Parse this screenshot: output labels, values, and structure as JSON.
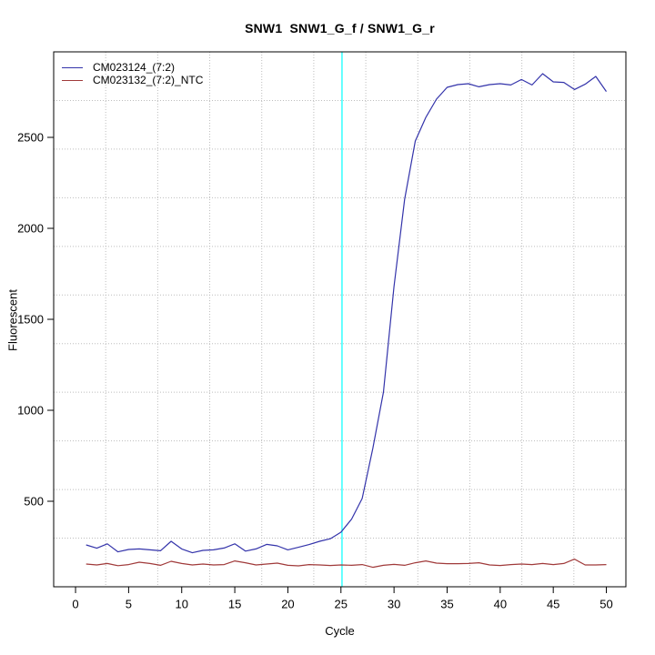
{
  "title": "SNW1  SNW1_G_f / SNW1_G_r",
  "x_axis": {
    "label": "Cycle",
    "ticks": [
      0,
      5,
      10,
      15,
      20,
      25,
      30,
      35,
      40,
      45,
      50
    ]
  },
  "y_axis": {
    "label": "Fluorescent",
    "ticks": [
      500,
      1000,
      1500,
      2000,
      2500
    ]
  },
  "legend": {
    "position": "topleft",
    "entries": [
      {
        "label": "CM023124_(7:2)",
        "color": "#3333aa"
      },
      {
        "label": "CM023132_(7:2)_NTC",
        "color": "#a03a3a"
      }
    ]
  },
  "chart_data": {
    "type": "line",
    "title": "SNW1  SNW1_G_f / SNW1_G_r",
    "xlabel": "Cycle",
    "ylabel": "Fluorescent",
    "xlim": [
      -2.06,
      51.84
    ],
    "ylim": [
      30,
      2970
    ],
    "grid": {
      "nx": 11,
      "ny": 11,
      "color": "#bdbdbd",
      "style": "dotted"
    },
    "threshold_line": {
      "orientation": "vertical",
      "x": 25.1,
      "color": "#00ffff"
    },
    "x": [
      1,
      2,
      3,
      4,
      5,
      6,
      7,
      8,
      9,
      10,
      11,
      12,
      13,
      14,
      15,
      16,
      17,
      18,
      19,
      20,
      21,
      22,
      23,
      24,
      25,
      26,
      27,
      28,
      29,
      30,
      31,
      32,
      33,
      34,
      35,
      36,
      37,
      38,
      39,
      40,
      41,
      42,
      43,
      44,
      45,
      46,
      47,
      48,
      49,
      50
    ],
    "series": [
      {
        "name": "CM023124_(7:2)",
        "color": "#3333aa",
        "values": [
          260,
          242,
          266,
          222,
          235,
          238,
          233,
          228,
          280,
          238,
          217,
          230,
          233,
          243,
          266,
          226,
          238,
          263,
          255,
          233,
          247,
          262,
          280,
          294,
          330,
          402,
          515,
          790,
          1100,
          1680,
          2160,
          2480,
          2610,
          2710,
          2775,
          2790,
          2795,
          2778,
          2790,
          2795,
          2788,
          2818,
          2788,
          2850,
          2805,
          2802,
          2763,
          2792,
          2835,
          2752
        ]
      },
      {
        "name": "CM023132_(7:2)_NTC",
        "color": "#a03a3a",
        "values": [
          155,
          150,
          158,
          146,
          152,
          165,
          158,
          148,
          170,
          158,
          150,
          155,
          150,
          152,
          172,
          162,
          150,
          155,
          160,
          148,
          145,
          152,
          150,
          147,
          150,
          148,
          152,
          137,
          148,
          153,
          148,
          162,
          172,
          160,
          157,
          157,
          158,
          162,
          150,
          147,
          152,
          155,
          152,
          158,
          152,
          158,
          182,
          150,
          150,
          152
        ]
      }
    ]
  }
}
